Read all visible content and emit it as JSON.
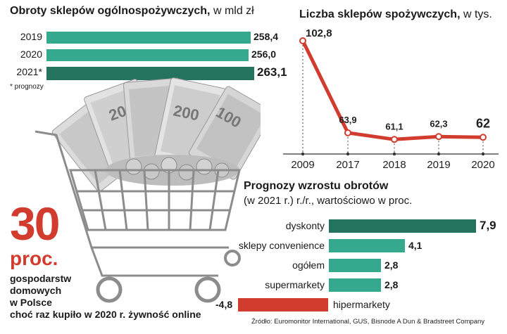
{
  "revenue": {
    "title": "Obroty sklepów ogólnospożywczych,",
    "unit": "w mld zł",
    "note": "* prognozy",
    "colors": {
      "normal": "#35a98e",
      "forecast": "#24735f"
    }
  },
  "stores": {
    "title": "Liczba sklepów spożywczych,",
    "unit": "w tys.",
    "color": "#d23c2f"
  },
  "growth": {
    "title": "Prognozy wzrostu obrotów",
    "subtitle": "(w 2021 r.) r./r., wartościowo w proc.",
    "colors": {
      "positive": "#35a98e",
      "top": "#24735f",
      "negative": "#d23c2f"
    }
  },
  "stat": {
    "number": "30",
    "unit": "proc.",
    "lines": [
      "gospodarstw",
      "domowych",
      "w Polsce",
      "choć raz kupiło w 2020 r. żywność online"
    ]
  },
  "source": "Źródło: Euromonitor International, GUS, Bisnode A Dun & Bradstreet Company",
  "chart_data": [
    {
      "type": "bar",
      "orientation": "horizontal",
      "title": "Obroty sklepów ogólnospożywczych, w mld zł",
      "categories": [
        "2019",
        "2020",
        "2021*"
      ],
      "values": [
        258.4,
        256.0,
        263.1
      ],
      "value_labels": [
        "258,4",
        "256,0",
        "263,1"
      ],
      "forecast": [
        false,
        false,
        true
      ]
    },
    {
      "type": "line",
      "title": "Liczba sklepów spożywczych, w tys.",
      "x": [
        "2009",
        "2017",
        "2018",
        "2019",
        "2020"
      ],
      "values": [
        102.8,
        63.9,
        61.1,
        62.3,
        62
      ],
      "value_labels": [
        "102,8",
        "63,9",
        "61,1",
        "62,3",
        "62"
      ]
    },
    {
      "type": "bar",
      "orientation": "horizontal",
      "title": "Prognozy wzrostu obrotów",
      "subtitle": "(w 2021 r.) r./r., wartościowo w proc.",
      "categories": [
        "dyskonty",
        "sklepy convenience",
        "ogółem",
        "supermarkety",
        "hipermarkety"
      ],
      "values": [
        7.9,
        4.1,
        2.8,
        2.8,
        -4.8
      ],
      "value_labels": [
        "7,9",
        "4,1",
        "2,8",
        "2,8",
        "-4,8"
      ]
    }
  ]
}
